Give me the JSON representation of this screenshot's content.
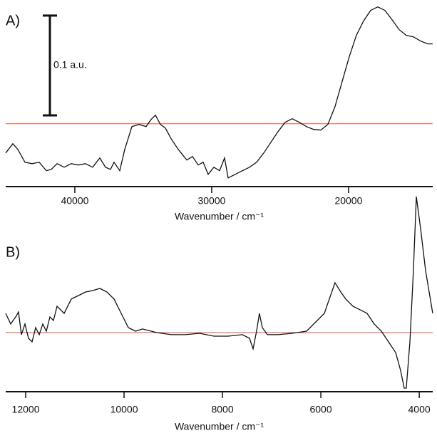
{
  "chart_data": [
    {
      "type": "line",
      "title": "A)",
      "xlabel": "Wavenumber / cm⁻¹",
      "x": [
        45050,
        44529,
        44165,
        43644,
        43123,
        42602,
        42082,
        41717,
        41300,
        40779,
        40259,
        39738,
        39217,
        38696,
        38175,
        37759,
        37394,
        37134,
        36717,
        36353,
        35832,
        35311,
        34790,
        34426,
        34113,
        33749,
        33384,
        32968,
        32447,
        31822,
        31405,
        30988,
        30624,
        30259,
        29843,
        29426,
        29061,
        28801,
        28280,
        27759,
        27238,
        26718,
        26197,
        25676,
        25155,
        24635,
        24114,
        23593,
        23072,
        22551,
        22031,
        21510,
        20989,
        20468,
        19947,
        19427,
        18906,
        18385,
        17864,
        17343,
        16822,
        16302,
        15781,
        15260,
        14739,
        14218,
        13854
      ],
      "series": [
        {
          "color": "#111111",
          "values": [
            -0.0293,
            -0.02,
            -0.0257,
            -0.0386,
            -0.04,
            -0.0386,
            -0.0471,
            -0.0457,
            -0.04,
            -0.0436,
            -0.04,
            -0.0414,
            -0.04,
            -0.0436,
            -0.0343,
            -0.0436,
            -0.0457,
            -0.0386,
            -0.0471,
            -0.0257,
            -0.0029,
            -0.0007,
            -0.0029,
            0.0043,
            0.0086,
            -0.0007,
            -0.0043,
            -0.015,
            -0.0257,
            -0.0364,
            -0.0329,
            -0.0414,
            -0.0386,
            -0.0507,
            -0.0436,
            -0.0471,
            -0.0343,
            -0.0543,
            -0.0507,
            -0.0471,
            -0.0436,
            -0.0386,
            -0.0293,
            -0.0186,
            -0.0079,
            0.0014,
            0.005,
            0.0014,
            -0.0029,
            -0.0057,
            -0.0064,
            -0.0007,
            0.0171,
            0.0421,
            0.0671,
            0.0886,
            0.1029,
            0.1136,
            0.1171,
            0.1136,
            0.1043,
            0.0943,
            0.0886,
            0.0871,
            0.0829,
            0.08,
            0.08
          ]
        }
      ],
      "xlim": [
        45050,
        13850
      ],
      "ylim": [
        -0.063,
        0.124
      ],
      "xticks": [
        40000,
        30000,
        20000
      ],
      "hline": 0,
      "hline_color": "#e8503a",
      "scale_bar": {
        "label": "0.1 a.u.",
        "value": 0.1
      }
    },
    {
      "type": "line",
      "title": "B)",
      "xlabel": "Wavenumber / cm⁻¹",
      "x": [
        12406,
        12305,
        12203,
        12145,
        12087,
        12015,
        11942,
        11870,
        11797,
        11725,
        11653,
        11580,
        11508,
        11435,
        11363,
        11218,
        11073,
        10928,
        10783,
        10638,
        10493,
        10348,
        10204,
        10059,
        9914,
        9769,
        9624,
        9334,
        9044,
        8754,
        8464,
        8175,
        7885,
        7595,
        7450,
        7378,
        7306,
        7248,
        7190,
        7088,
        6871,
        6581,
        6291,
        6074,
        5929,
        5828,
        5712,
        5596,
        5494,
        5349,
        5204,
        5060,
        4915,
        4770,
        4625,
        4480,
        4379,
        4306,
        4263,
        4190,
        4118,
        4060,
        3973,
        3871,
        3799,
        3726
      ],
      "series": [
        {
          "color": "#111111",
          "values": [
            0.0193,
            0.0086,
            0.0157,
            0.0207,
            -0.0021,
            0.0086,
            -0.0057,
            -0.0093,
            0.005,
            -0.0021,
            0.0086,
            0.0014,
            0.0157,
            0.0121,
            0.0264,
            0.0193,
            0.0336,
            0.0371,
            0.0407,
            0.0421,
            0.0443,
            0.0407,
            0.0336,
            0.0193,
            0.005,
            0.0014,
            0.0036,
            0,
            -0.0021,
            -0.0021,
            -0.0007,
            -0.0036,
            -0.0036,
            -0.0021,
            -0.0057,
            -0.0164,
            0.0014,
            0.0193,
            0.005,
            -0.0021,
            -0.0021,
            -0.0007,
            0.0014,
            0.0121,
            0.0193,
            0.0336,
            0.05,
            0.0407,
            0.0336,
            0.0264,
            0.0229,
            0.0193,
            0.0086,
            0.0014,
            -0.0093,
            -0.02,
            -0.0379,
            -0.0557,
            -0.0557,
            -0.0093,
            0.0621,
            0.1364,
            0.1043,
            0.0621,
            0.0407,
            0.0193
          ]
        }
      ],
      "xlim": [
        12406,
        3726
      ],
      "ylim": [
        -0.0593,
        0.1407
      ],
      "xticks": [
        12000,
        10000,
        8000,
        6000,
        4000
      ],
      "hline": 0,
      "hline_color": "#e8503a"
    }
  ]
}
